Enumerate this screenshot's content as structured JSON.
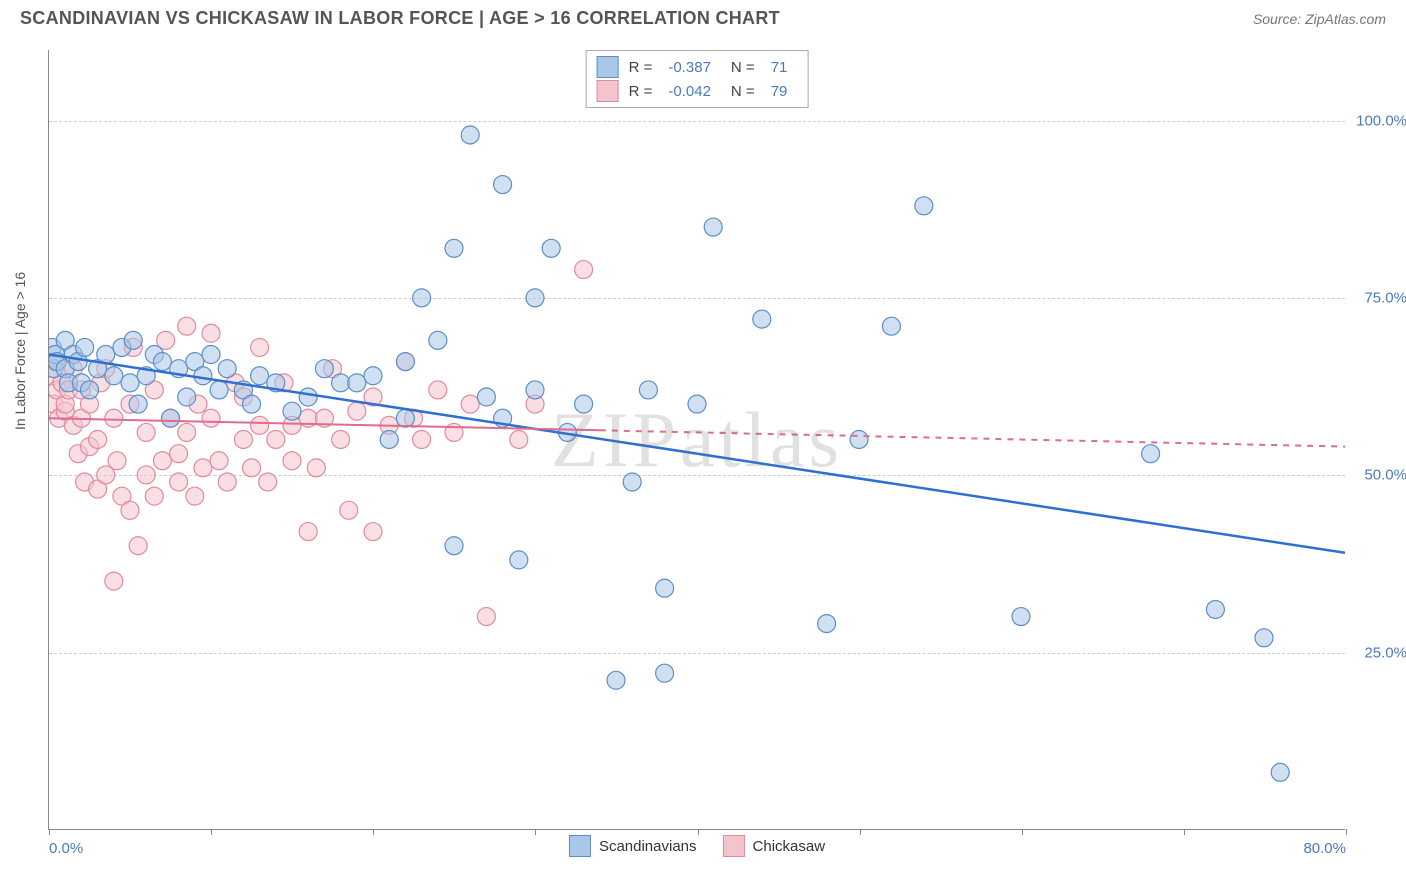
{
  "title": "SCANDINAVIAN VS CHICKASAW IN LABOR FORCE | AGE > 16 CORRELATION CHART",
  "source": "Source: ZipAtlas.com",
  "y_axis_label": "In Labor Force | Age > 16",
  "watermark": "ZIPatlas",
  "chart": {
    "type": "scatter",
    "xlim": [
      0,
      80
    ],
    "ylim": [
      0,
      110
    ],
    "x_ticks": [
      0,
      10,
      20,
      30,
      40,
      50,
      60,
      70,
      80
    ],
    "x_tick_labels_shown": {
      "0": "0.0%",
      "80": "80.0%"
    },
    "y_gridlines": [
      25,
      50,
      75,
      100
    ],
    "y_tick_labels": {
      "25": "25.0%",
      "50": "50.0%",
      "75": "75.0%",
      "100": "100.0%"
    },
    "background_color": "#ffffff",
    "grid_color": "#cccccc",
    "axis_color": "#888888",
    "marker_radius": 9,
    "marker_opacity": 0.55,
    "series": [
      {
        "name": "Scandinavians",
        "fill_color": "#a9c7e8",
        "stroke_color": "#5b8fc7",
        "r_value": "-0.387",
        "n_value": "71",
        "regression": {
          "x1": 0,
          "y1": 67,
          "x2": 80,
          "y2": 39,
          "color": "#2d6fd2",
          "width": 2.5,
          "dash": "none"
        },
        "points": [
          [
            0.2,
            68
          ],
          [
            0.3,
            65
          ],
          [
            0.4,
            67
          ],
          [
            0.5,
            66
          ],
          [
            1,
            69
          ],
          [
            1,
            65
          ],
          [
            1.2,
            63
          ],
          [
            1.5,
            67
          ],
          [
            1.8,
            66
          ],
          [
            2,
            63
          ],
          [
            2.2,
            68
          ],
          [
            2.5,
            62
          ],
          [
            3,
            65
          ],
          [
            3.5,
            67
          ],
          [
            4,
            64
          ],
          [
            4.5,
            68
          ],
          [
            5,
            63
          ],
          [
            5.2,
            69
          ],
          [
            5.5,
            60
          ],
          [
            6,
            64
          ],
          [
            6.5,
            67
          ],
          [
            7,
            66
          ],
          [
            7.5,
            58
          ],
          [
            8,
            65
          ],
          [
            8.5,
            61
          ],
          [
            9,
            66
          ],
          [
            9.5,
            64
          ],
          [
            10,
            67
          ],
          [
            10.5,
            62
          ],
          [
            11,
            65
          ],
          [
            12,
            62
          ],
          [
            12.5,
            60
          ],
          [
            13,
            64
          ],
          [
            14,
            63
          ],
          [
            15,
            59
          ],
          [
            16,
            61
          ],
          [
            17,
            65
          ],
          [
            18,
            63
          ],
          [
            19,
            63
          ],
          [
            20,
            64
          ],
          [
            21,
            55
          ],
          [
            22,
            58
          ],
          [
            22,
            66
          ],
          [
            23,
            75
          ],
          [
            24,
            69
          ],
          [
            25,
            40
          ],
          [
            25,
            82
          ],
          [
            26,
            98
          ],
          [
            27,
            61
          ],
          [
            28,
            58
          ],
          [
            28,
            91
          ],
          [
            29,
            38
          ],
          [
            30,
            62
          ],
          [
            30,
            75
          ],
          [
            31,
            82
          ],
          [
            32,
            56
          ],
          [
            33,
            60
          ],
          [
            35,
            21
          ],
          [
            36,
            49
          ],
          [
            37,
            62
          ],
          [
            38,
            22
          ],
          [
            38,
            34
          ],
          [
            40,
            60
          ],
          [
            41,
            85
          ],
          [
            44,
            72
          ],
          [
            48,
            29
          ],
          [
            50,
            55
          ],
          [
            52,
            71
          ],
          [
            54,
            88
          ],
          [
            60,
            30
          ],
          [
            68,
            53
          ],
          [
            72,
            31
          ],
          [
            75,
            27
          ],
          [
            76,
            8
          ]
        ]
      },
      {
        "name": "Chickasaw",
        "fill_color": "#f4c4cd",
        "stroke_color": "#e289a0",
        "r_value": "-0.042",
        "n_value": "79",
        "regression": {
          "x1": 0,
          "y1": 58,
          "x2": 80,
          "y2": 54,
          "color": "#e06b8c",
          "width": 2,
          "dash": "solid-then-dash",
          "solid_until_x": 34
        },
        "points": [
          [
            0.2,
            64
          ],
          [
            0.3,
            60
          ],
          [
            0.4,
            66
          ],
          [
            0.5,
            62
          ],
          [
            0.6,
            58
          ],
          [
            0.8,
            63
          ],
          [
            1,
            59
          ],
          [
            1,
            60
          ],
          [
            1.2,
            62
          ],
          [
            1.5,
            57
          ],
          [
            1.5,
            65
          ],
          [
            1.8,
            53
          ],
          [
            2,
            58
          ],
          [
            2,
            62
          ],
          [
            2.2,
            49
          ],
          [
            2.5,
            60
          ],
          [
            2.5,
            54
          ],
          [
            3,
            55
          ],
          [
            3,
            48
          ],
          [
            3.2,
            63
          ],
          [
            3.5,
            50
          ],
          [
            3.5,
            65
          ],
          [
            4,
            35
          ],
          [
            4,
            58
          ],
          [
            4.2,
            52
          ],
          [
            4.5,
            47
          ],
          [
            5,
            60
          ],
          [
            5,
            45
          ],
          [
            5.2,
            68
          ],
          [
            5.5,
            40
          ],
          [
            6,
            56
          ],
          [
            6,
            50
          ],
          [
            6.5,
            62
          ],
          [
            6.5,
            47
          ],
          [
            7,
            52
          ],
          [
            7.2,
            69
          ],
          [
            7.5,
            58
          ],
          [
            8,
            53
          ],
          [
            8,
            49
          ],
          [
            8.5,
            56
          ],
          [
            8.5,
            71
          ],
          [
            9,
            47
          ],
          [
            9.2,
            60
          ],
          [
            9.5,
            51
          ],
          [
            10,
            70
          ],
          [
            10,
            58
          ],
          [
            10.5,
            52
          ],
          [
            11,
            49
          ],
          [
            11.5,
            63
          ],
          [
            12,
            55
          ],
          [
            12,
            61
          ],
          [
            12.5,
            51
          ],
          [
            13,
            57
          ],
          [
            13,
            68
          ],
          [
            13.5,
            49
          ],
          [
            14,
            55
          ],
          [
            14.5,
            63
          ],
          [
            15,
            52
          ],
          [
            15,
            57
          ],
          [
            16,
            58
          ],
          [
            16,
            42
          ],
          [
            16.5,
            51
          ],
          [
            17,
            58
          ],
          [
            17.5,
            65
          ],
          [
            18,
            55
          ],
          [
            18.5,
            45
          ],
          [
            19,
            59
          ],
          [
            20,
            42
          ],
          [
            20,
            61
          ],
          [
            21,
            57
          ],
          [
            22,
            66
          ],
          [
            22.5,
            58
          ],
          [
            23,
            55
          ],
          [
            24,
            62
          ],
          [
            25,
            56
          ],
          [
            26,
            60
          ],
          [
            27,
            30
          ],
          [
            29,
            55
          ],
          [
            30,
            60
          ],
          [
            33,
            79
          ]
        ]
      }
    ]
  },
  "legend_top": {
    "rows": [
      {
        "swatch_fill": "#a9c7e8",
        "swatch_stroke": "#5b8fc7",
        "r_label": "R =",
        "r_val": "-0.387",
        "n_label": "N =",
        "n_val": "71"
      },
      {
        "swatch_fill": "#f4c4cd",
        "swatch_stroke": "#e289a0",
        "r_label": "R =",
        "r_val": "-0.042",
        "n_label": "N =",
        "n_val": "79"
      }
    ]
  },
  "legend_bottom": {
    "items": [
      {
        "swatch_fill": "#a9c7e8",
        "swatch_stroke": "#5b8fc7",
        "label": "Scandinavians"
      },
      {
        "swatch_fill": "#f4c4cd",
        "swatch_stroke": "#e289a0",
        "label": "Chickasaw"
      }
    ]
  }
}
